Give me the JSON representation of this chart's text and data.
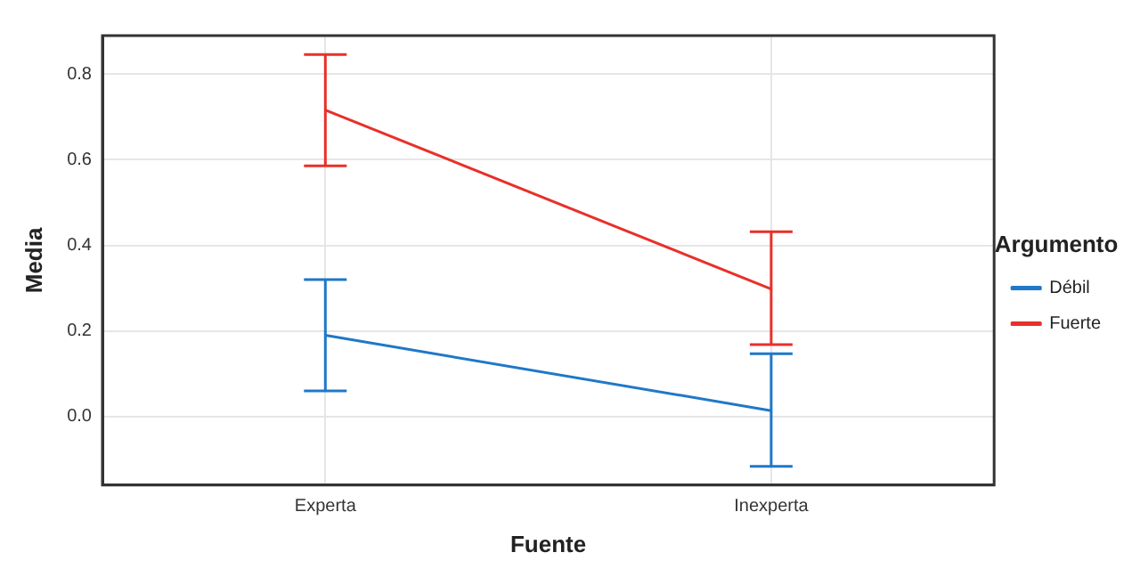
{
  "chart_data": {
    "type": "line",
    "xlabel": "Fuente",
    "ylabel": "Media",
    "legend_title": "Argumento",
    "categories": [
      "Experta",
      "Inexperta"
    ],
    "series": [
      {
        "name": "Débil",
        "color": "#1f78c8",
        "values": [
          0.19,
          0.014
        ],
        "errors": [
          [
            0.06,
            0.32
          ],
          [
            -0.116,
            0.147
          ]
        ]
      },
      {
        "name": "Fuerte",
        "color": "#e8302a",
        "values": [
          0.716,
          0.298
        ],
        "errors": [
          [
            0.586,
            0.846
          ],
          [
            0.168,
            0.432
          ]
        ]
      }
    ],
    "ylim": [
      -0.16,
      0.89
    ],
    "yticks": [
      {
        "value": 0,
        "label": "0.0"
      },
      0.2,
      0.4,
      0.6,
      0.8
    ],
    "grid": true,
    "legend": "right",
    "marker": "none",
    "line_style": "solid"
  }
}
